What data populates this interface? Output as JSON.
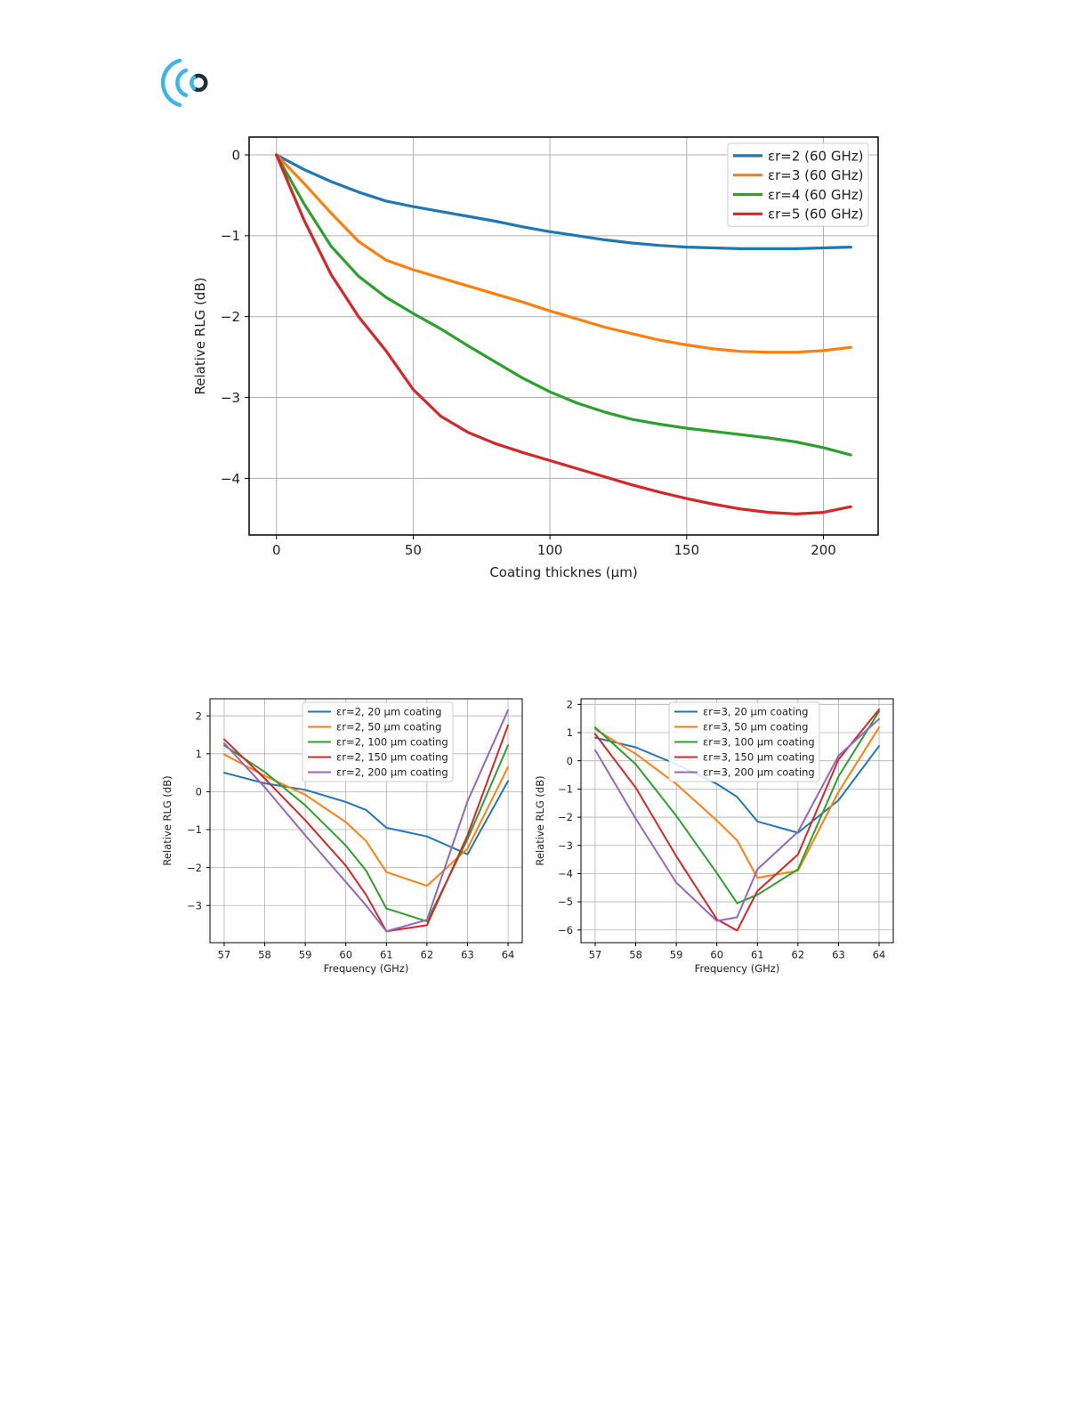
{
  "logo": {
    "icon": "signal-waves-icon",
    "colors": {
      "arc": "#3bb6e8",
      "core": "#1d2f40"
    }
  },
  "chart_data": [
    {
      "type": "line",
      "xlabel": "Coating thicknes (µm)",
      "ylabel": "Relative RLG (dB)",
      "xlim": [
        -10,
        220
      ],
      "ylim": [
        -4.7,
        0.22
      ],
      "xticks": [
        0,
        50,
        100,
        150,
        200
      ],
      "xtick_labels": [
        "0",
        "50",
        "100",
        "150",
        "200"
      ],
      "yticks": [
        0,
        -1,
        -2,
        -3,
        -4
      ],
      "ytick_labels": [
        "0",
        "−1",
        "−2",
        "−3",
        "−4"
      ],
      "grid": true,
      "legend_position": "top-right",
      "x": [
        0,
        10,
        20,
        30,
        40,
        50,
        60,
        70,
        80,
        90,
        100,
        110,
        120,
        130,
        140,
        150,
        160,
        170,
        180,
        190,
        200,
        210
      ],
      "series": [
        {
          "name": "εr=2 (60 GHz)",
          "color": "#1f77b4",
          "values": [
            0,
            -0.18,
            -0.33,
            -0.46,
            -0.57,
            -0.64,
            -0.7,
            -0.76,
            -0.82,
            -0.89,
            -0.95,
            -1.0,
            -1.05,
            -1.09,
            -1.12,
            -1.14,
            -1.15,
            -1.16,
            -1.16,
            -1.16,
            -1.15,
            -1.14
          ]
        },
        {
          "name": "εr=3 (60 GHz)",
          "color": "#ff7f0e",
          "values": [
            0,
            -0.35,
            -0.72,
            -1.07,
            -1.3,
            -1.42,
            -1.52,
            -1.62,
            -1.72,
            -1.82,
            -1.93,
            -2.03,
            -2.13,
            -2.21,
            -2.29,
            -2.35,
            -2.4,
            -2.43,
            -2.44,
            -2.44,
            -2.42,
            -2.38
          ]
        },
        {
          "name": "εr=4 (60 GHz)",
          "color": "#2ca02c",
          "values": [
            0,
            -0.6,
            -1.13,
            -1.5,
            -1.76,
            -1.96,
            -2.15,
            -2.36,
            -2.56,
            -2.76,
            -2.93,
            -3.07,
            -3.18,
            -3.27,
            -3.33,
            -3.38,
            -3.42,
            -3.46,
            -3.5,
            -3.55,
            -3.62,
            -3.71
          ]
        },
        {
          "name": "εr=5 (60 GHz)",
          "color": "#d62728",
          "values": [
            0,
            -0.8,
            -1.48,
            -2.0,
            -2.42,
            -2.9,
            -3.23,
            -3.43,
            -3.57,
            -3.68,
            -3.78,
            -3.88,
            -3.98,
            -4.08,
            -4.17,
            -4.25,
            -4.32,
            -4.38,
            -4.42,
            -4.44,
            -4.42,
            -4.35
          ]
        }
      ]
    },
    {
      "type": "line",
      "xlabel": "Frequency (GHz)",
      "ylabel": "Relative RLG (dB)",
      "xlim": [
        56.65,
        64.35
      ],
      "ylim": [
        -3.98,
        2.45
      ],
      "xticks": [
        57,
        58,
        59,
        60,
        61,
        62,
        63,
        64
      ],
      "xtick_labels": [
        "57",
        "58",
        "59",
        "60",
        "61",
        "62",
        "63",
        "64"
      ],
      "yticks": [
        2,
        1,
        0,
        -1,
        -2,
        -3
      ],
      "ytick_labels": [
        "2",
        "1",
        "0",
        "−1",
        "−2",
        "−3"
      ],
      "grid": true,
      "legend_position": "top-center",
      "x": [
        57,
        58,
        59,
        60,
        60.5,
        61,
        62,
        63,
        64
      ],
      "series": [
        {
          "name": "εr=2, 20 µm coating",
          "color": "#1f77b4",
          "values": [
            0.5,
            0.22,
            0.05,
            -0.27,
            -0.48,
            -0.95,
            -1.18,
            -1.65,
            0.28
          ]
        },
        {
          "name": "εr=2, 50 µm coating",
          "color": "#ff7f0e",
          "values": [
            0.98,
            0.42,
            -0.08,
            -0.8,
            -1.3,
            -2.12,
            -2.48,
            -1.5,
            0.65
          ]
        },
        {
          "name": "εr=2, 100 µm coating",
          "color": "#2ca02c",
          "values": [
            1.22,
            0.52,
            -0.36,
            -1.42,
            -2.08,
            -3.08,
            -3.42,
            -1.25,
            1.22
          ]
        },
        {
          "name": "εr=2, 150 µm coating",
          "color": "#d62728",
          "values": [
            1.38,
            0.35,
            -0.75,
            -1.95,
            -2.72,
            -3.68,
            -3.52,
            -1.15,
            1.75
          ]
        },
        {
          "name": "εr=2, 200 µm coating",
          "color": "#9467bd",
          "values": [
            1.28,
            0.12,
            -1.15,
            -2.38,
            -3.0,
            -3.68,
            -3.38,
            -0.25,
            2.15
          ]
        }
      ]
    },
    {
      "type": "line",
      "xlabel": "Frequency (GHz)",
      "ylabel": "Relative RLG (dB)",
      "xlim": [
        56.65,
        64.35
      ],
      "ylim": [
        -6.45,
        2.2
      ],
      "xticks": [
        57,
        58,
        59,
        60,
        61,
        62,
        63,
        64
      ],
      "xtick_labels": [
        "57",
        "58",
        "59",
        "60",
        "61",
        "62",
        "63",
        "64"
      ],
      "yticks": [
        2,
        1,
        0,
        -1,
        -2,
        -3,
        -4,
        -5,
        -6
      ],
      "ytick_labels": [
        "2",
        "1",
        "0",
        "−1",
        "−2",
        "−3",
        "−4",
        "−5",
        "−6"
      ],
      "grid": true,
      "legend_position": "top-center",
      "x": [
        57,
        58,
        59,
        60,
        60.5,
        61,
        62,
        63,
        64
      ],
      "series": [
        {
          "name": "εr=3, 20 µm coating",
          "color": "#1f77b4",
          "values": [
            0.82,
            0.48,
            -0.12,
            -0.82,
            -1.28,
            -2.15,
            -2.55,
            -1.4,
            0.52
          ]
        },
        {
          "name": "εr=3, 50 µm coating",
          "color": "#ff7f0e",
          "values": [
            1.12,
            0.25,
            -0.82,
            -2.12,
            -2.82,
            -4.15,
            -3.9,
            -1.1,
            1.18
          ]
        },
        {
          "name": "εr=3, 100 µm coating",
          "color": "#2ca02c",
          "values": [
            1.18,
            -0.12,
            -1.95,
            -3.98,
            -5.05,
            -4.75,
            -3.85,
            -0.55,
            1.75
          ]
        },
        {
          "name": "εr=3, 150 µm coating",
          "color": "#d62728",
          "values": [
            0.95,
            -0.95,
            -3.38,
            -5.62,
            -6.02,
            -4.62,
            -3.32,
            0.05,
            1.82
          ]
        },
        {
          "name": "εr=3, 200 µm coating",
          "color": "#9467bd",
          "values": [
            0.38,
            -2.05,
            -4.32,
            -5.68,
            -5.55,
            -3.85,
            -2.52,
            0.18,
            1.48
          ]
        }
      ]
    }
  ]
}
